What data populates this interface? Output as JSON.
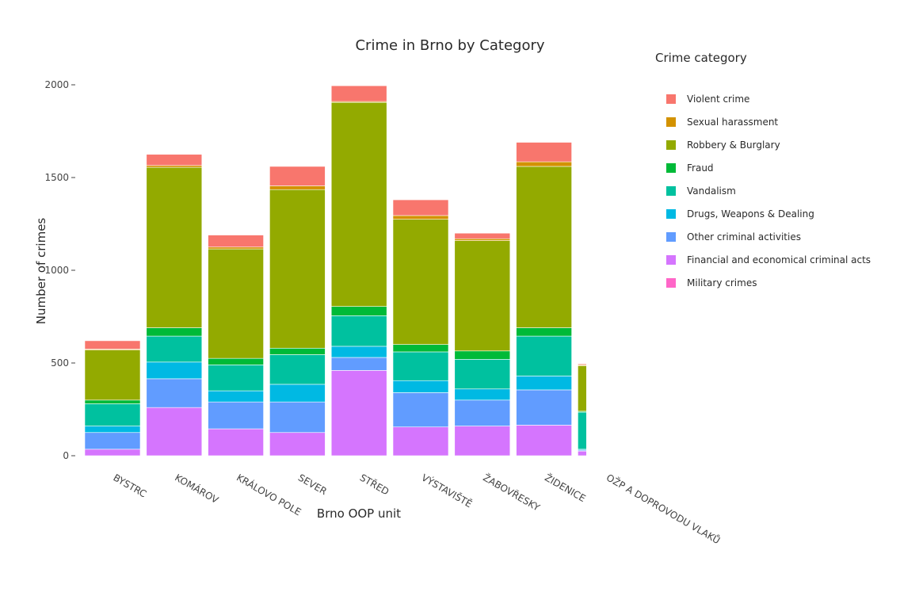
{
  "chart_data": {
    "type": "bar",
    "stacked": true,
    "title": "Crime in Brno by Category",
    "xlabel": "Brno OOP unit",
    "ylabel": "Number of crimes",
    "ylim": [
      0,
      2100
    ],
    "yticks": [
      0,
      500,
      1000,
      1500,
      2000
    ],
    "ytick_labels": [
      "0",
      "500",
      "1000",
      "1500",
      "2000"
    ],
    "grid": false,
    "legend_title": "Crime category",
    "legend_position": "right",
    "categories": [
      "BYSTRC",
      "KOMÁROV",
      "KRÁLOVO POLE",
      "SEVER",
      "STŘED",
      "VÝSTAVIŠTĚ",
      "ŽABOVŘESKY",
      "ŽIDENICE",
      "OŽP A DOPROVODU VLAKŮ"
    ],
    "series": [
      {
        "name": "Military crimes",
        "color": "#FF66C8",
        "values": [
          0,
          0,
          0,
          0,
          0,
          0,
          0,
          0,
          0
        ]
      },
      {
        "name": "Financial and economical criminal acts",
        "color": "#D575FE",
        "values": [
          35,
          260,
          145,
          125,
          460,
          155,
          160,
          165,
          25
        ]
      },
      {
        "name": "Other criminal activities",
        "color": "#619CFF",
        "values": [
          90,
          155,
          145,
          165,
          70,
          185,
          140,
          190,
          5
        ]
      },
      {
        "name": "Drugs, Weapons & Dealing",
        "color": "#00B9E3",
        "values": [
          35,
          90,
          60,
          95,
          60,
          65,
          60,
          75,
          5
        ]
      },
      {
        "name": "Vandalism",
        "color": "#00C19F",
        "values": [
          120,
          140,
          140,
          160,
          165,
          155,
          160,
          215,
          200
        ]
      },
      {
        "name": "Fraud",
        "color": "#00BA38",
        "values": [
          20,
          45,
          35,
          35,
          50,
          40,
          45,
          45,
          5
        ]
      },
      {
        "name": "Robbery & Burglary",
        "color": "#93AA00",
        "values": [
          270,
          865,
          590,
          855,
          1100,
          675,
          595,
          870,
          245
        ]
      },
      {
        "name": "Sexual harassment",
        "color": "#D39200",
        "values": [
          5,
          10,
          10,
          20,
          5,
          20,
          10,
          25,
          5
        ]
      },
      {
        "name": "Violent crime",
        "color": "#F8766D",
        "values": [
          45,
          60,
          65,
          105,
          85,
          85,
          30,
          105,
          5
        ]
      }
    ],
    "legend_order": [
      "Violent crime",
      "Sexual harassment",
      "Robbery & Burglary",
      "Fraud",
      "Vandalism",
      "Drugs, Weapons & Dealing",
      "Other criminal activities",
      "Financial and economical criminal acts",
      "Military crimes"
    ]
  }
}
